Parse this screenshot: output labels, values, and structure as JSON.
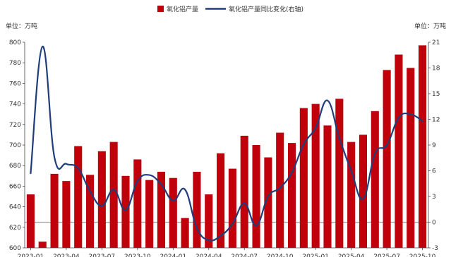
{
  "chart_data": {
    "type": "bar",
    "legend": {
      "placement": "top-center"
    },
    "y_left": {
      "unit_label": "单位：万吨",
      "ylim": [
        600,
        800
      ],
      "ticks": [
        600,
        620,
        640,
        660,
        680,
        700,
        720,
        740,
        760,
        780,
        800
      ]
    },
    "y_right": {
      "unit_label": "单位：万吨",
      "ylim": [
        -3,
        21
      ],
      "ticks": [
        -3,
        0,
        3,
        6,
        9,
        12,
        15,
        18,
        21
      ]
    },
    "x_tick_labels": [
      "2023-01",
      "2023-04",
      "2023-07",
      "2023-10",
      "2024-01",
      "2024-04",
      "2024-07",
      "2024-10",
      "2025-01",
      "2025-04",
      "2025-07",
      "2025-10"
    ],
    "categories": [
      "2023-01",
      "2023-02",
      "2023-03",
      "2023-04",
      "2023-05",
      "2023-06",
      "2023-07",
      "2023-08",
      "2023-09",
      "2023-10",
      "2023-11",
      "2023-12",
      "2024-01",
      "2024-02",
      "2024-03",
      "2024-04",
      "2024-05",
      "2024-06",
      "2024-07",
      "2024-08",
      "2024-09",
      "2024-10",
      "2024-11",
      "2024-12",
      "2025-01",
      "2025-02",
      "2025-03",
      "2025-04",
      "2025-05",
      "2025-06",
      "2025-07",
      "2025-08",
      "2025-09",
      "2025-10"
    ],
    "series": [
      {
        "name": "氧化铝产量",
        "type": "bar",
        "axis": "left",
        "color": "#c0000a",
        "values": [
          652,
          606,
          672,
          665,
          699,
          671,
          694,
          703,
          670,
          686,
          666,
          674,
          668,
          629,
          674,
          652,
          692,
          677,
          709,
          700,
          688,
          712,
          702,
          736,
          740,
          719,
          745,
          703,
          710,
          733,
          773,
          788,
          775,
          797
        ]
      },
      {
        "name": "氧化铝产量同比变化(右轴)",
        "type": "line",
        "axis": "right",
        "color": "#1f3d7a",
        "values": [
          5.7,
          20.5,
          7.6,
          6.8,
          6.3,
          3.6,
          1.9,
          3.8,
          1.4,
          4.8,
          5.5,
          4.4,
          2.5,
          3.8,
          -0.7,
          -2.1,
          -1.6,
          -0.2,
          2.2,
          -0.4,
          3.0,
          4.0,
          5.8,
          9.1,
          11.0,
          14.2,
          9.8,
          6.0,
          2.7,
          8.0,
          9.0,
          12.2,
          12.6,
          11.8
        ]
      }
    ]
  }
}
